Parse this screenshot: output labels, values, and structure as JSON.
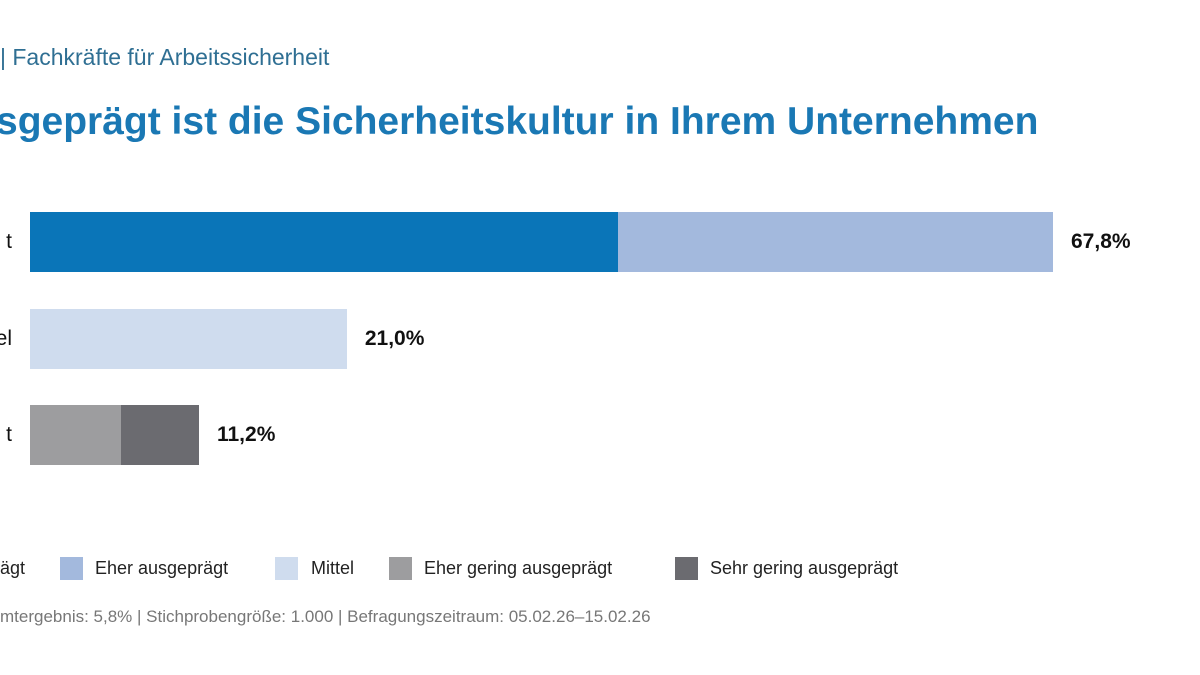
{
  "subtitle": "| Fachkräfte für Arbeitssicherheit",
  "title": "sgeprägt ist die Sicherheitskultur in Ihrem Unternehmen",
  "chart_data": {
    "type": "bar",
    "orientation": "horizontal",
    "stacked": true,
    "categories": [
      "t",
      "el",
      "t"
    ],
    "series": [
      {
        "name": "ägt",
        "color": "#0a75b8",
        "values": [
          39.0,
          0,
          0
        ]
      },
      {
        "name": "Eher ausgeprägt",
        "color": "#a3b9dd",
        "values": [
          28.8,
          0,
          0
        ]
      },
      {
        "name": "Mittel",
        "color": "#cfdcee",
        "values": [
          0,
          21.0,
          0
        ]
      },
      {
        "name": "Eher gering ausgeprägt",
        "color": "#9d9d9f",
        "values": [
          0,
          0,
          6.0
        ]
      },
      {
        "name": "Sehr gering ausgeprägt",
        "color": "#6b6b70",
        "values": [
          0,
          0,
          5.2
        ]
      }
    ],
    "totals_labels": [
      "67,8%",
      "21,0%",
      "11,2%"
    ],
    "totals": [
      67.8,
      21.0,
      11.2
    ],
    "xlim": [
      0,
      68
    ],
    "grid": false,
    "legend_position": "bottom"
  },
  "footer": "mtergebnis: 5,8% | Stichprobengröße: 1.000 | Befragungszeitraum: 05.02.26–15.02.26"
}
